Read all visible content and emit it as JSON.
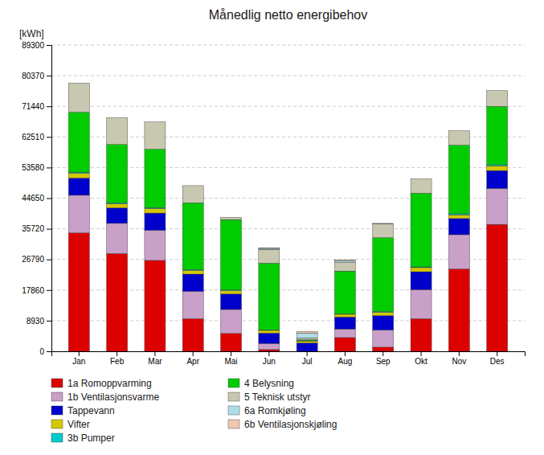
{
  "chart_data": {
    "type": "bar",
    "title": "Månedlig netto energibehov",
    "ylabel": "[kWh]",
    "categories": [
      "Jan",
      "Feb",
      "Mar",
      "Apr",
      "Mai",
      "Jun",
      "Jul",
      "Aug",
      "Sep",
      "Okt",
      "Nov",
      "Des"
    ],
    "series": [
      {
        "name": "1a Romoppvarming",
        "color": "#dd0000",
        "values": [
          34500,
          28500,
          26500,
          9500,
          5200,
          500,
          0,
          4000,
          1200,
          9500,
          24000,
          37000
        ]
      },
      {
        "name": "1b Ventilasjonsvarme",
        "color": "#c8a0c8",
        "values": [
          11000,
          8800,
          8800,
          8000,
          7000,
          1800,
          0,
          2500,
          5000,
          8500,
          10000,
          10500
        ]
      },
      {
        "name": "Tappevann",
        "color": "#0000cc",
        "values": [
          5000,
          4500,
          5000,
          5000,
          4500,
          3000,
          2400,
          3500,
          4200,
          5200,
          4700,
          5200
        ]
      },
      {
        "name": "Vifter",
        "color": "#d4c800",
        "values": [
          1400,
          1200,
          1300,
          1100,
          1000,
          800,
          600,
          800,
          1000,
          1200,
          1100,
          1400
        ]
      },
      {
        "name": "3b Pumper",
        "color": "#00cccc",
        "values": [
          300,
          300,
          300,
          200,
          200,
          100,
          100,
          100,
          200,
          200,
          300,
          300
        ]
      },
      {
        "name": "4 Belysning",
        "color": "#00cc00",
        "values": [
          17500,
          17000,
          17000,
          19500,
          20500,
          19500,
          300,
          12500,
          21500,
          21500,
          20000,
          17000
        ]
      },
      {
        "name": "5 Teknisk utstyr",
        "color": "#c8c8b0",
        "values": [
          8500,
          7800,
          8000,
          5000,
          700,
          4000,
          500,
          2500,
          4000,
          4200,
          4200,
          4600
        ]
      },
      {
        "name": "6a Romkjøling",
        "color": "#b0dce8",
        "values": [
          0,
          0,
          0,
          0,
          0,
          300,
          1400,
          500,
          100,
          0,
          0,
          0
        ]
      },
      {
        "name": "6b Ventilasjonskjøling",
        "color": "#f0c8b0",
        "values": [
          0,
          0,
          0,
          0,
          0,
          200,
          500,
          300,
          100,
          0,
          0,
          0
        ]
      }
    ],
    "ylim": [
      0,
      89300
    ],
    "yticks": [
      0,
      8930,
      17860,
      26790,
      35720,
      44650,
      53580,
      62510,
      71440,
      80370,
      89300
    ],
    "stacked": true,
    "grid": true,
    "legend": "bottom"
  }
}
